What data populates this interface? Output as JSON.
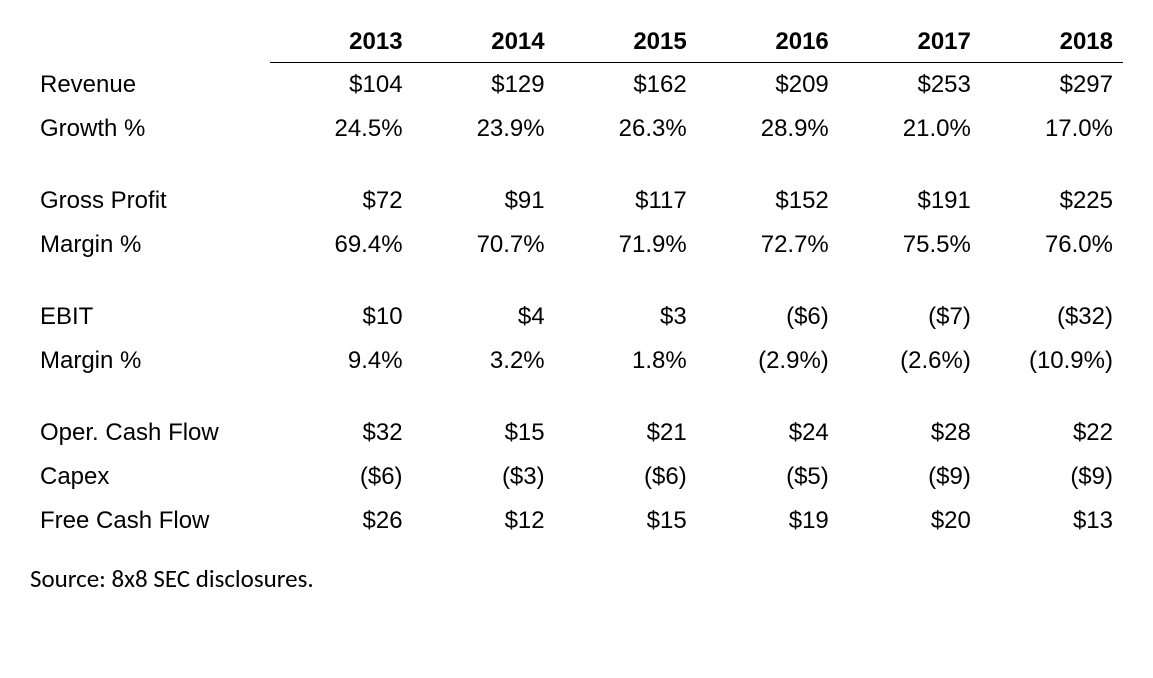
{
  "table": {
    "type": "table",
    "background_color": "#ffffff",
    "text_color": "#000000",
    "font_family": "Arial",
    "header_fontsize": 24,
    "body_fontsize": 24,
    "header_fontweight": "bold",
    "header_border_bottom": "1.5px solid #000000",
    "columns": [
      {
        "key": "label",
        "header": "",
        "align": "left",
        "width": "22%"
      },
      {
        "key": "y2013",
        "header": "2013",
        "align": "right",
        "width": "13%"
      },
      {
        "key": "y2014",
        "header": "2014",
        "align": "right",
        "width": "13%"
      },
      {
        "key": "y2015",
        "header": "2015",
        "align": "right",
        "width": "13%"
      },
      {
        "key": "y2016",
        "header": "2016",
        "align": "right",
        "width": "13%"
      },
      {
        "key": "y2017",
        "header": "2017",
        "align": "right",
        "width": "13%"
      },
      {
        "key": "y2018",
        "header": "2018",
        "align": "right",
        "width": "13%"
      }
    ],
    "groups": [
      {
        "rows": [
          {
            "label": "Revenue",
            "y2013": "$104",
            "y2014": "$129",
            "y2015": "$162",
            "y2016": "$209",
            "y2017": "$253",
            "y2018": "$297"
          },
          {
            "label": "Growth %",
            "y2013": "24.5%",
            "y2014": "23.9%",
            "y2015": "26.3%",
            "y2016": "28.9%",
            "y2017": "21.0%",
            "y2018": "17.0%"
          }
        ]
      },
      {
        "rows": [
          {
            "label": "Gross Profit",
            "y2013": "$72",
            "y2014": "$91",
            "y2015": "$117",
            "y2016": "$152",
            "y2017": "$191",
            "y2018": "$225"
          },
          {
            "label": "Margin %",
            "y2013": "69.4%",
            "y2014": "70.7%",
            "y2015": "71.9%",
            "y2016": "72.7%",
            "y2017": "75.5%",
            "y2018": "76.0%"
          }
        ]
      },
      {
        "rows": [
          {
            "label": "EBIT",
            "y2013": "$10",
            "y2014": "$4",
            "y2015": "$3",
            "y2016": "($6)",
            "y2017": "($7)",
            "y2018": "($32)"
          },
          {
            "label": "Margin %",
            "y2013": "9.4%",
            "y2014": "3.2%",
            "y2015": "1.8%",
            "y2016": "(2.9%)",
            "y2017": "(2.6%)",
            "y2018": "(10.9%)"
          }
        ]
      },
      {
        "rows": [
          {
            "label": "Oper. Cash Flow",
            "y2013": "$32",
            "y2014": "$15",
            "y2015": "$21",
            "y2016": "$24",
            "y2017": "$28",
            "y2018": "$22"
          },
          {
            "label": "Capex",
            "y2013": "($6)",
            "y2014": "($3)",
            "y2015": "($6)",
            "y2016": "($5)",
            "y2017": "($9)",
            "y2018": "($9)"
          },
          {
            "label": "Free Cash Flow",
            "y2013": "$26",
            "y2014": "$12",
            "y2015": "$15",
            "y2016": "$19",
            "y2017": "$20",
            "y2018": "$13"
          }
        ]
      }
    ]
  },
  "source_note": "Source: 8x8 SEC disclosures."
}
